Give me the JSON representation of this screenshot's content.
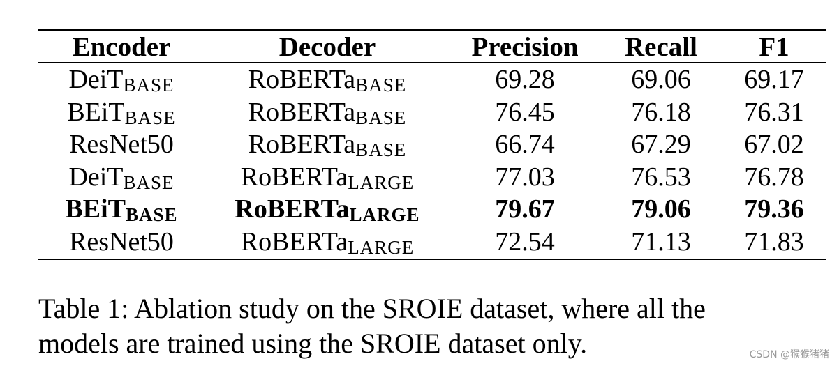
{
  "table": {
    "headers": [
      "Encoder",
      "Decoder",
      "Precision",
      "Recall",
      "F1"
    ],
    "rows": [
      {
        "encoder": "DeiT",
        "encoder_sub": "BASE",
        "decoder": "RoBERTa",
        "decoder_sub": "BASE",
        "precision": "69.28",
        "recall": "69.06",
        "f1": "69.17"
      },
      {
        "encoder": "BEiT",
        "encoder_sub": "BASE",
        "decoder": "RoBERTa",
        "decoder_sub": "BASE",
        "precision": "76.45",
        "recall": "76.18",
        "f1": "76.31"
      },
      {
        "encoder": "ResNet50",
        "encoder_sub": "",
        "decoder": "RoBERTa",
        "decoder_sub": "BASE",
        "precision": "66.74",
        "recall": "67.29",
        "f1": "67.02"
      },
      {
        "encoder": "DeiT",
        "encoder_sub": "BASE",
        "decoder": "RoBERTa",
        "decoder_sub": "LARGE",
        "precision": "77.03",
        "recall": "76.53",
        "f1": "76.78"
      },
      {
        "encoder": "BEiT",
        "encoder_sub": "BASE",
        "decoder": "RoBERTa",
        "decoder_sub": "LARGE",
        "precision": "79.67",
        "recall": "79.06",
        "f1": "79.36",
        "bold": true
      },
      {
        "encoder": "ResNet50",
        "encoder_sub": "",
        "decoder": "RoBERTa",
        "decoder_sub": "LARGE",
        "precision": "72.54",
        "recall": "71.13",
        "f1": "71.83"
      }
    ]
  },
  "caption": {
    "line1": "Table 1: Ablation study on the SROIE dataset, where all the",
    "line2": "models are trained using the SROIE dataset only."
  },
  "watermark": "CSDN @猴猴猪猪"
}
